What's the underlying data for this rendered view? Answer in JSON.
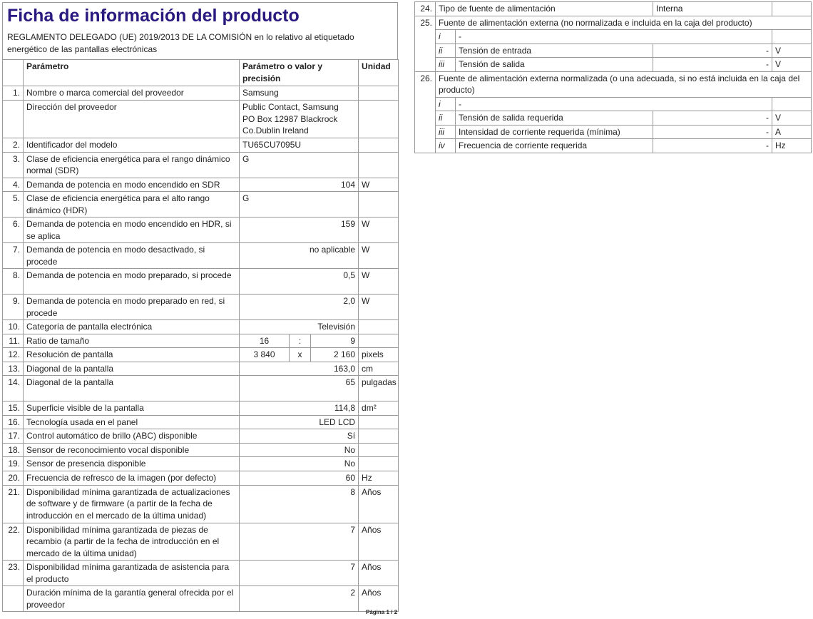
{
  "title": "Ficha de información del producto",
  "subtitle": "REGLAMENTO DELEGADO (UE) 2019/2013 DE LA COMISIÓN en lo relativo al etiquetado energético de las pantallas electrónicas",
  "headers": {
    "param": "Parámetro",
    "value": "Parámetro o valor y precisión",
    "unit": "Unidad"
  },
  "rows": [
    {
      "n": "1.",
      "p": "Nombre o marca comercial del proveedor",
      "v": "Samsung",
      "u": "",
      "align": "left",
      "h": 20
    },
    {
      "n": "",
      "p": "Dirección del proveedor",
      "v": "Public Contact, Samsung\nPO Box 12987 Blackrock\nCo.Dublin Ireland",
      "u": "",
      "align": "left",
      "h": 53
    },
    {
      "n": "2.",
      "p": "Identificador del modelo",
      "v": "TU65CU7095U",
      "u": "",
      "align": "left",
      "h": 18
    },
    {
      "n": "3.",
      "p": "Clase de eficiencia energética para el rango dinámico normal (SDR)",
      "v": "G",
      "u": "",
      "align": "left",
      "h": 36
    },
    {
      "n": "4.",
      "p": "Demanda de potencia en modo encendido en SDR",
      "v": "104",
      "u": "W",
      "h": 19
    },
    {
      "n": "5.",
      "p": "Clase de eficiencia energética para el alto rango dinámico (HDR)",
      "v": "G",
      "u": "",
      "align": "left",
      "h": 35
    },
    {
      "n": "6.",
      "p": "Demanda de potencia en modo encendido en HDR, si se aplica",
      "v": "159",
      "u": "W",
      "h": 36
    },
    {
      "n": "7.",
      "p": "Demanda de potencia en modo desactivado, si procede",
      "v": "no aplicable",
      "u": "W",
      "h": 35
    },
    {
      "n": "8.",
      "p": "Demanda de potencia en modo preparado, si procede",
      "v": "0,5",
      "u": "W",
      "h": 36
    },
    {
      "n": "9.",
      "p": "Demanda de potencia en modo preparado en red, si procede",
      "v": "2,0",
      "u": "W",
      "h": 36
    },
    {
      "n": "10.",
      "p": "Categoría de pantalla electrónica",
      "v": "Televisión",
      "u": "",
      "h": 19
    },
    {
      "n": "11.",
      "p": "Ratio de tamaño",
      "split": [
        "16",
        ":",
        "9"
      ],
      "u": "",
      "h": 19
    },
    {
      "n": "12.",
      "p": "Resolución de pantalla",
      "split": [
        "3 840",
        "x",
        "2 160"
      ],
      "u": "pixels",
      "h": 19
    },
    {
      "n": "13.",
      "p": "Diagonal de la pantalla",
      "v": "163,0",
      "u": "cm",
      "h": 19
    },
    {
      "n": "14.",
      "p": "Diagonal de la pantalla",
      "v": "65",
      "u": "pulgadas",
      "h": 36
    },
    {
      "n": "15.",
      "p": "Superficie visible de la pantalla",
      "v": "114,8",
      "u": "dm²",
      "h": 19
    },
    {
      "n": "16.",
      "p": "Tecnología usada en el panel",
      "v": "LED LCD",
      "u": "",
      "h": 19
    },
    {
      "n": "17.",
      "p": "Control automático de brillo (ABC) disponible",
      "v": "Sí",
      "u": "",
      "h": 19
    },
    {
      "n": "18.",
      "p": "Sensor de reconocimiento vocal disponible",
      "v": "No",
      "u": "",
      "h": 19
    },
    {
      "n": "19.",
      "p": "Sensor de presencia disponible",
      "v": "No",
      "u": "",
      "h": 19
    },
    {
      "n": "20.",
      "p": "Frecuencia de refresco de la imagen (por defecto)",
      "v": "60",
      "u": "Hz",
      "h": 20
    },
    {
      "n": "21.",
      "p": "Disponibilidad mínima garantizada de actualizaciones de software y de firmware (a partir de la fecha de introducción en el mercado de la última unidad)",
      "v": "8",
      "u": "Años",
      "h": 53
    },
    {
      "n": "22.",
      "p": "Disponibilidad mínima garantizada de piezas de recambio (a partir de la fecha de introducción en el mercado de la última unidad)",
      "v": "7",
      "u": "Años",
      "h": 51
    },
    {
      "n": "23.",
      "p": "Disponibilidad mínima garantizada de asistencia para el producto",
      "v": "7",
      "u": "Años",
      "h": 36
    },
    {
      "n": "",
      "p": "Duración mínima de la garantía general ofrecida por el proveedor",
      "v": "2",
      "u": "Años",
      "h": 36
    }
  ],
  "right": {
    "r24": {
      "n": "24.",
      "p": "Tipo de fuente de alimentación",
      "v": "Interna"
    },
    "r25": {
      "n": "25.",
      "p": "Fuente de alimentación externa (no normalizada e incluida en la caja del producto)",
      "subs": [
        {
          "k": "i",
          "p": "-",
          "v": "",
          "u": ""
        },
        {
          "k": "ii",
          "p": "Tensión de entrada",
          "v": "-",
          "u": "V"
        },
        {
          "k": "iii",
          "p": "Tensión de salida",
          "v": "-",
          "u": "V"
        }
      ]
    },
    "r26": {
      "n": "26.",
      "p": "Fuente de alimentación externa normalizada (o una adecuada, si no está incluida en la caja del producto)",
      "subs": [
        {
          "k": "i",
          "p": "-",
          "v": "",
          "u": ""
        },
        {
          "k": "ii",
          "p": "Tensión de salida requerida",
          "v": "-",
          "u": "V"
        },
        {
          "k": "iii",
          "p": "Intensidad de corriente requerida (mínima)",
          "v": "-",
          "u": "A"
        },
        {
          "k": "iv",
          "p": "Frecuencia de corriente requerida",
          "v": "-",
          "u": "Hz"
        }
      ]
    }
  },
  "footer": "Página 1 / 2"
}
